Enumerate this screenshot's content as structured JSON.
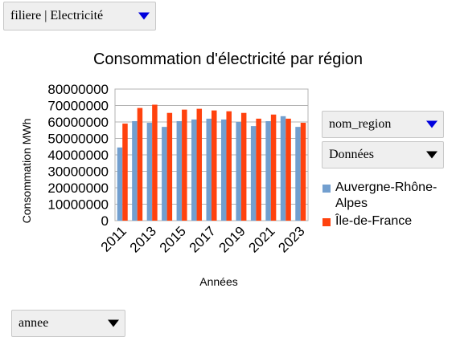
{
  "controls": {
    "filiere": "filiere | Electricité",
    "nom_region": "nom_region",
    "donnees": "Données",
    "annee": "annee"
  },
  "chart_data": {
    "type": "bar",
    "title": "Consommation d'électricité par région",
    "xlabel": "Années",
    "ylabel": "Consommation MWh",
    "ylim": [
      0,
      80000000
    ],
    "yticks": [
      "0",
      "10000000",
      "20000000",
      "30000000",
      "40000000",
      "50000000",
      "60000000",
      "70000000",
      "80000000"
    ],
    "categories": [
      "2011",
      "2012",
      "2013",
      "2014",
      "2015",
      "2016",
      "2017",
      "2018",
      "2019",
      "2020",
      "2021",
      "2022",
      "2023"
    ],
    "xtick_labels": [
      "2011",
      "2013",
      "2015",
      "2017",
      "2019",
      "2021",
      "2023"
    ],
    "grid": true,
    "legend_position": "right",
    "series": [
      {
        "name": "Auvergne-Rhône-Alpes",
        "color": "#729fcf",
        "values": [
          44500000,
          60500000,
          59500000,
          57000000,
          60500000,
          61500000,
          62000000,
          61500000,
          60000000,
          57500000,
          60500000,
          63500000,
          57000000
        ]
      },
      {
        "name": "Île-de-France",
        "color": "#ff420e",
        "values": [
          59000000,
          68500000,
          70500000,
          65500000,
          67500000,
          68000000,
          67000000,
          66500000,
          65500000,
          62000000,
          64500000,
          62000000,
          59500000
        ]
      }
    ]
  }
}
